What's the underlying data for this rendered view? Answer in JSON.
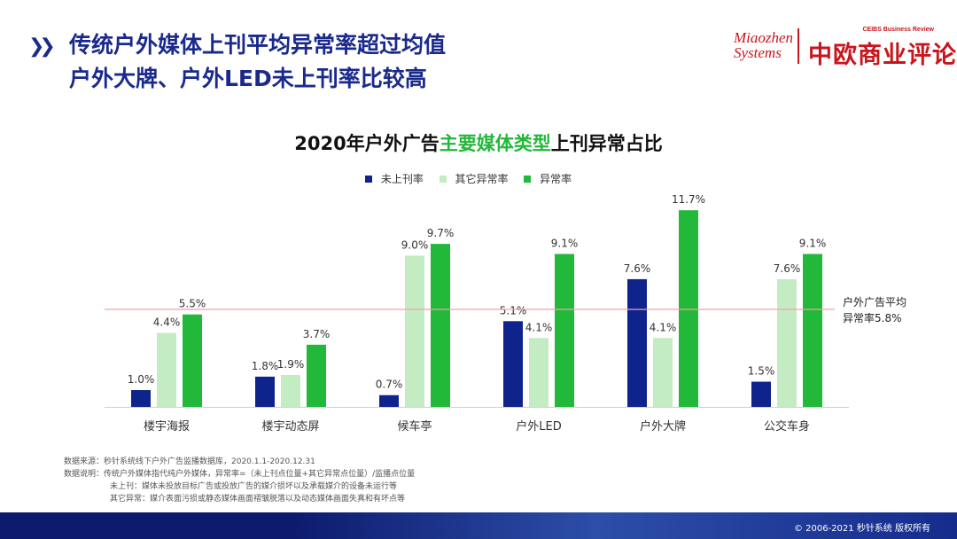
{
  "header": {
    "title_line1": "传统户外媒体上刊平均异常率超过均值",
    "title_line2": "户外大牌、户外LED未上刊率比较高"
  },
  "logos": {
    "miaozhen_line1": "Miaozhen",
    "miaozhen_line2": "Systems",
    "ceibs_en": "CEIBS Business Review",
    "ceibs_zh": "中欧商业评论"
  },
  "chart_title": {
    "part1": "2020年户外广告",
    "highlight": "主要媒体类型",
    "part2": "上刊异常占比"
  },
  "chart_data": {
    "type": "bar",
    "title": "2020年户外广告主要媒体类型上刊异常占比",
    "categories": [
      "楼宇海报",
      "楼宇动态屏",
      "候车亭",
      "户外LED",
      "户外大牌",
      "公交车身"
    ],
    "series": [
      {
        "name": "未上刊率",
        "values": [
          1.0,
          1.8,
          0.7,
          5.1,
          7.6,
          1.5
        ],
        "labels": [
          "1.0%",
          "1.8%",
          "0.7%",
          "5.1%",
          "7.6%",
          "1.5%"
        ],
        "color": "#0f238c"
      },
      {
        "name": "其它异常率",
        "values": [
          4.4,
          1.9,
          9.0,
          4.1,
          4.1,
          7.6
        ],
        "labels": [
          "4.4%",
          "1.9%",
          "9.0%",
          "4.1%",
          "4.1%",
          "7.6%"
        ],
        "color": "#c4ecc3"
      },
      {
        "name": "异常率",
        "values": [
          5.5,
          3.7,
          9.7,
          9.1,
          11.7,
          9.1
        ],
        "labels": [
          "5.5%",
          "3.7%",
          "9.7%",
          "9.1%",
          "11.7%",
          "9.1%"
        ],
        "color": "#22b83a"
      }
    ],
    "reference_line": {
      "value": 5.8,
      "label_line1": "户外广告平均",
      "label_line2": "异常率5.8%",
      "color": "#f4a0a8"
    },
    "ylim": [
      0,
      12.5
    ],
    "xlabel": "",
    "ylabel": "",
    "legend_position": "top"
  },
  "notes": {
    "source": "数据来源：秒针系统线下户外广告监播数据库，2020.1.1-2020.12.31",
    "desc": "数据说明：传统户外媒体指代纯户外媒体，异常率=（未上刊点位量+其它异常点位量）/监播点位量",
    "def1": "未上刊：媒体未投放目标广告或投放广告的媒介损坏以及承载媒介的设备未运行等",
    "def2": "其它异常：媒介表面污损或静态媒体画面褶皱脱落以及动态媒体画面失真和有坏点等"
  },
  "footer": {
    "copyright": "© 2006-2021  秒针系统 版权所有"
  }
}
